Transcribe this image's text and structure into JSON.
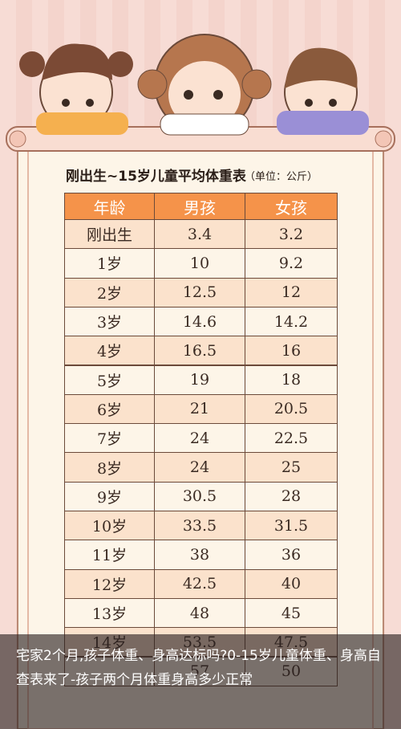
{
  "header": {
    "title": "刚出生~15岁儿童平均体重表",
    "unit": "（单位：公斤）"
  },
  "table": {
    "columns": [
      "年龄",
      "男孩",
      "女孩"
    ],
    "rows": [
      {
        "age": "刚出生",
        "boy": "3.4",
        "girl": "3.2"
      },
      {
        "age": "1岁",
        "boy": "10",
        "girl": "9.2"
      },
      {
        "age": "2岁",
        "boy": "12.5",
        "girl": "12"
      },
      {
        "age": "3岁",
        "boy": "14.6",
        "girl": "14.2"
      },
      {
        "age": "4岁",
        "boy": "16.5",
        "girl": "16"
      },
      {
        "age": "5岁",
        "boy": "19",
        "girl": "18"
      },
      {
        "age": "6岁",
        "boy": "21",
        "girl": "20.5"
      },
      {
        "age": "7岁",
        "boy": "24",
        "girl": "22.5"
      },
      {
        "age": "8岁",
        "boy": "24",
        "girl": "25"
      },
      {
        "age": "9岁",
        "boy": "30.5",
        "girl": "28"
      },
      {
        "age": "10岁",
        "boy": "33.5",
        "girl": "31.5"
      },
      {
        "age": "11岁",
        "boy": "38",
        "girl": "36"
      },
      {
        "age": "12岁",
        "boy": "42.5",
        "girl": "40"
      },
      {
        "age": "13岁",
        "boy": "48",
        "girl": "45"
      },
      {
        "age": "14岁",
        "boy": "53.5",
        "girl": "47.5"
      },
      {
        "boy": "57",
        "girl": "50"
      }
    ]
  },
  "caption": "宅家2个月,孩子体重、身高达标吗?0-15岁儿童体重、身高自查表来了-孩子两个月体重身高多少正常"
}
